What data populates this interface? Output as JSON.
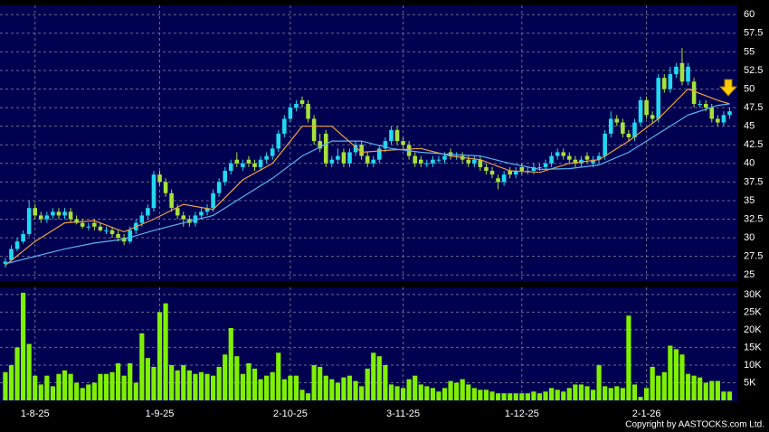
{
  "chart_data": [
    {
      "type": "candlestick",
      "open": [
        26.5,
        27,
        28.5,
        29.5,
        30.5,
        34,
        33,
        32.5,
        33,
        33.5,
        33,
        33.5,
        32.5,
        32,
        31.5,
        32,
        31.5,
        31,
        31,
        30.5,
        30,
        29.5,
        31,
        32,
        33,
        34,
        38.5,
        37.5,
        36,
        34,
        33,
        32.5,
        32,
        33,
        33.5,
        34,
        36,
        37.5,
        39,
        40.5,
        39.5,
        40.5,
        40,
        39.5,
        40.5,
        41,
        42,
        44,
        46,
        47.5,
        48.5,
        48,
        46,
        43,
        44,
        40,
        40.5,
        41.5,
        40,
        41.5,
        42.5,
        41,
        40,
        40.5,
        42,
        43,
        44.5,
        43,
        42.5,
        41,
        40.5,
        40,
        40,
        40.5,
        40.5,
        41.5,
        41,
        41,
        40.5,
        40,
        40.5,
        39.5,
        39,
        38,
        37.5,
        39,
        38.5,
        39.5,
        39,
        39,
        39.5,
        39.5,
        40,
        41,
        41.5,
        41,
        40.5,
        40,
        41,
        40,
        40.5,
        41,
        44,
        46,
        45.5,
        44,
        43.5,
        45.5,
        48.5,
        46.5,
        46,
        51.5,
        50,
        52,
        53.5,
        51,
        51,
        48,
        48,
        47.5,
        46,
        45.5,
        46.5
      ],
      "high": [
        27.3,
        29,
        30,
        31,
        35,
        34.5,
        33.5,
        33.5,
        34,
        34,
        34,
        34,
        33,
        32.5,
        32,
        32.5,
        32,
        31.5,
        31.5,
        31,
        30.5,
        31.5,
        32.5,
        33.5,
        34.5,
        39,
        39,
        38,
        36.5,
        34.5,
        33.5,
        33,
        33.5,
        34,
        34.5,
        36.5,
        38,
        39.5,
        40.5,
        41.5,
        40.5,
        41,
        40.5,
        41,
        41.5,
        42.5,
        44.5,
        46.5,
        48,
        48.5,
        49,
        48.5,
        46.5,
        44,
        44.5,
        41,
        42,
        42,
        42,
        43,
        43,
        41.5,
        41,
        42.5,
        43.5,
        45,
        45,
        43.5,
        43,
        41.5,
        41,
        40.5,
        41,
        41,
        41.5,
        42,
        41.5,
        41.5,
        41,
        41,
        41,
        40,
        39.5,
        38.5,
        39,
        39.5,
        39.5,
        40,
        39.5,
        40,
        40,
        40.5,
        41.5,
        42,
        42,
        41.5,
        41,
        41,
        41.5,
        41,
        41.5,
        44.5,
        47,
        46.5,
        46,
        44.5,
        46,
        49,
        49,
        47,
        52,
        52,
        53,
        53.5,
        55.5,
        53.5,
        51.5,
        48.5,
        48.5,
        48,
        46.5,
        47,
        47.5
      ],
      "low": [
        26,
        26.8,
        28.2,
        29.2,
        30.2,
        32.5,
        32,
        32,
        32.5,
        32.5,
        32.5,
        32,
        31.8,
        31.2,
        31,
        31,
        30.8,
        30.5,
        30,
        29.5,
        29,
        29.2,
        30.5,
        31.5,
        32.5,
        33.5,
        37,
        35.5,
        33.5,
        32.5,
        31.5,
        31.5,
        31.5,
        32.5,
        33,
        33.5,
        35.5,
        37,
        38.5,
        39.5,
        39,
        39.5,
        39,
        39,
        40,
        40.5,
        41.5,
        43.5,
        45.5,
        47,
        47.5,
        45.5,
        42.5,
        41.5,
        39.5,
        39.5,
        40,
        39.5,
        39.5,
        41,
        40.5,
        39.5,
        39.5,
        40,
        41.5,
        42.5,
        42.5,
        42,
        40.5,
        39.5,
        39.5,
        39.5,
        39.5,
        40,
        40,
        40.5,
        40.5,
        40,
        39.5,
        39.5,
        39,
        38.5,
        38,
        36.5,
        37,
        38,
        38,
        38.5,
        38.5,
        38.5,
        39,
        39,
        39.5,
        40.5,
        40.5,
        40,
        39.5,
        39.5,
        40,
        39.5,
        40,
        40.5,
        43.5,
        45,
        43.5,
        43,
        43,
        45,
        46,
        45.5,
        45.5,
        49.5,
        49.5,
        51.5,
        50.5,
        50.5,
        47.5,
        47.5,
        47,
        45.5,
        45,
        45,
        46
      ],
      "close": [
        26.8,
        28.5,
        29.5,
        30.5,
        34,
        33,
        32.5,
        33,
        33.5,
        33,
        33.5,
        32.5,
        32,
        31.5,
        31.5,
        31.5,
        31,
        31,
        30.5,
        30,
        29.5,
        31,
        32,
        33,
        34,
        38.5,
        37.5,
        36,
        34,
        33,
        32.5,
        32,
        33,
        33.5,
        34,
        36,
        37.5,
        39,
        40,
        40,
        40,
        40,
        39.5,
        40.5,
        41,
        42,
        44,
        46,
        47.5,
        48,
        48,
        46,
        43,
        42,
        40,
        40.5,
        41,
        40,
        41.5,
        42.5,
        41,
        40,
        40.5,
        42,
        43,
        44.5,
        43,
        42.5,
        41,
        40,
        40,
        40,
        40.5,
        40.5,
        41,
        41,
        41,
        40.5,
        40,
        40.5,
        39.5,
        39,
        38.5,
        37.5,
        38.5,
        38.5,
        39,
        39,
        39,
        39.5,
        39.5,
        40,
        41,
        41.5,
        41,
        40.5,
        40,
        40.5,
        40.5,
        40.5,
        41,
        44,
        46,
        45.5,
        44,
        43.5,
        45.5,
        48.5,
        46.5,
        46,
        51.5,
        50,
        52,
        53,
        51,
        53,
        48,
        48,
        47.5,
        46,
        45.5,
        46.5,
        47
      ],
      "up_color": "#22d8f0",
      "down_color": "#a6e23a",
      "series": [
        {
          "color": "#f0a040",
          "x": [
            0,
            5,
            10,
            15,
            20,
            25,
            30,
            35,
            40,
            45,
            50,
            55,
            60,
            65,
            70,
            75,
            80,
            85,
            90,
            95,
            100,
            105,
            110,
            115,
            120,
            122
          ],
          "values": [
            26.3,
            29.5,
            32,
            32.3,
            30.8,
            32.5,
            34.5,
            33.8,
            37.8,
            40,
            45,
            45,
            41.5,
            41.8,
            42,
            41,
            40.5,
            39,
            38.8,
            40,
            40.5,
            43,
            46,
            50,
            48.5,
            48
          ]
        },
        {
          "color": "#5ab4f0",
          "x": [
            0,
            5,
            10,
            15,
            20,
            25,
            30,
            35,
            40,
            45,
            50,
            55,
            60,
            65,
            70,
            75,
            80,
            85,
            90,
            95,
            100,
            105,
            110,
            115,
            120,
            122
          ],
          "values": [
            26.5,
            27.5,
            28.5,
            29.3,
            29.8,
            31,
            32,
            33,
            35.5,
            38,
            41,
            43,
            43,
            42,
            41.5,
            41.2,
            41,
            40,
            39.2,
            39.3,
            39.8,
            41.5,
            44,
            46.5,
            47.8,
            48
          ]
        }
      ],
      "xlim": [
        -0.9,
        123.3
      ],
      "xticks": [
        {
          "value": 5,
          "label": "1-8-25"
        },
        {
          "value": 26,
          "label": "1-9-25"
        },
        {
          "value": 48,
          "label": "2-10-25"
        },
        {
          "value": 67,
          "label": "3-11-25"
        },
        {
          "value": 87,
          "label": "1-12-25"
        },
        {
          "value": 108,
          "label": "2-1-26"
        }
      ],
      "ylim": [
        24.3,
        61
      ],
      "yticks": [
        25,
        27.5,
        30,
        32.5,
        35,
        37.5,
        40,
        42.5,
        45,
        47.5,
        50,
        52.5,
        55,
        57.5,
        60
      ],
      "grid": true
    },
    {
      "type": "bar",
      "color": "#7ff000",
      "values": [
        8000,
        10000,
        15000,
        30500,
        16000,
        7000,
        4500,
        7000,
        4000,
        7500,
        8500,
        7500,
        5000,
        3500,
        4500,
        5000,
        7500,
        7500,
        8000,
        10500,
        7000,
        10500,
        5000,
        19000,
        12000,
        9500,
        25000,
        27500,
        10000,
        8500,
        10000,
        8500,
        7500,
        8000,
        7500,
        7000,
        9500,
        13000,
        20500,
        12500,
        7500,
        10500,
        9000,
        6000,
        7000,
        8000,
        13500,
        6000,
        7000,
        7000,
        3000,
        2000,
        10000,
        9500,
        7000,
        6000,
        5000,
        6500,
        7000,
        5500,
        4000,
        9000,
        13500,
        12500,
        10000,
        4500,
        4000,
        3500,
        6000,
        7000,
        4500,
        4000,
        3500,
        2500,
        3500,
        5500,
        5000,
        6000,
        4500,
        3500,
        3000,
        3000,
        2500,
        2000,
        2000,
        2000,
        2000,
        2000,
        2000,
        2500,
        2000,
        2500,
        3500,
        3000,
        2500,
        3500,
        4500,
        4500,
        4000,
        3000,
        10000,
        4000,
        3500,
        4000,
        3500,
        24000,
        4500,
        1000,
        3500,
        9500,
        7000,
        8000,
        15500,
        14500,
        13000,
        7500,
        7000,
        6500,
        5000,
        5500,
        5500,
        2500,
        2500
      ],
      "xlim": [
        -0.9,
        123.3
      ],
      "ylim": [
        0,
        31500
      ],
      "yticks": [
        {
          "value": 5000,
          "label": "5K"
        },
        {
          "value": 10000,
          "label": "10K"
        },
        {
          "value": 15000,
          "label": "15K"
        },
        {
          "value": 20000,
          "label": "20K"
        },
        {
          "value": 25000,
          "label": "25K"
        },
        {
          "value": 30000,
          "label": "30K"
        }
      ],
      "grid": true
    }
  ],
  "copyright": "Copyright by AASTOCKS.com Ltd."
}
